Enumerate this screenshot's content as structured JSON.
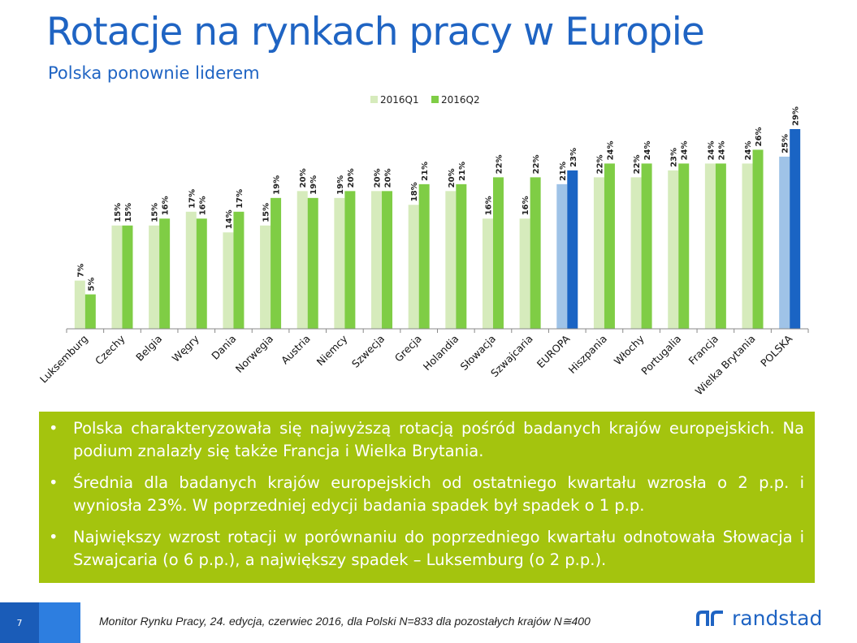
{
  "header": {
    "title": "Rotacje na rynkach pracy w Europie",
    "subtitle": "Polska ponownie liderem"
  },
  "chart_data": {
    "type": "bar",
    "title": "",
    "xlabel": "",
    "ylabel": "",
    "ylim": [
      0,
      29
    ],
    "legend_position": "top-center",
    "categories": [
      "Luksemburg",
      "Czechy",
      "Belgia",
      "Węgry",
      "Dania",
      "Norwegia",
      "Austria",
      "Niemcy",
      "Szwecja",
      "Grecja",
      "Holandia",
      "Słowacja",
      "Szwajcaria",
      "EUROPA",
      "Hiszpania",
      "Włochy",
      "Portugalia",
      "Francja",
      "Wielka Brytania",
      "POLSKA"
    ],
    "series": [
      {
        "name": "2016Q1",
        "values": [
          7,
          15,
          15,
          17,
          14,
          15,
          20,
          19,
          20,
          18,
          20,
          16,
          16,
          21,
          22,
          22,
          23,
          24,
          24,
          25
        ]
      },
      {
        "name": "2016Q2",
        "values": [
          5,
          15,
          16,
          16,
          17,
          19,
          19,
          20,
          20,
          21,
          21,
          22,
          22,
          23,
          24,
          24,
          24,
          24,
          26,
          29
        ]
      }
    ],
    "label_suffix": "%",
    "colors": {
      "q1": "#d6ebbc",
      "q2": "#7fcd45",
      "highlight_q1": "#9fc3e7",
      "highlight_q2": "#1a64c4"
    },
    "highlight_categories": [
      "EUROPA",
      "POLSKA"
    ]
  },
  "info_box": {
    "bullet": "•",
    "items": [
      "Polska charakteryzowała się najwyższą rotacją pośród badanych krajów europejskich. Na podium znalazły się także Francja i Wielka Brytania.",
      "Średnia dla badanych krajów europejskich od ostatniego kwartału wzrosła o 2 p.p. i wyniosła 23%. W poprzedniej edycji badania spadek był spadek o 1 p.p.",
      "Największy wzrost rotacji w porównaniu do poprzedniego kwartału odnotowała Słowacja i Szwajcaria (o 6 p.p.), a największy spadek – Luksemburg (o 2 p.p.)."
    ]
  },
  "footer": {
    "page_number": "7",
    "note": "Monitor Rynku Pracy, 24. edycja, czerwiec 2016, dla Polski N=833 dla pozostałych krajów N≅400",
    "logo_text": "randstad",
    "logo_color": "#1f64c3"
  }
}
